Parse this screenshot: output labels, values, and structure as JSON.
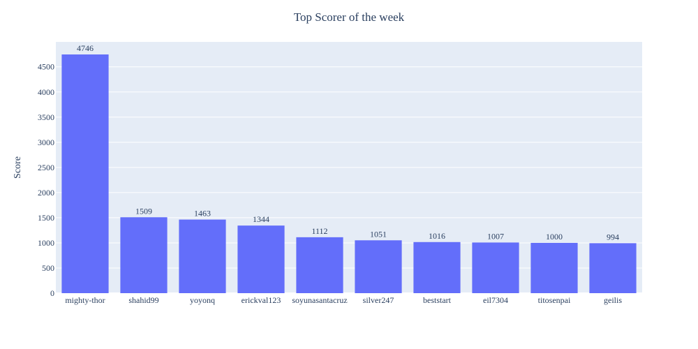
{
  "chart_data": {
    "type": "bar",
    "title": "Top Scorer of the week",
    "xlabel": "",
    "ylabel": "Score",
    "categories": [
      "mighty-thor",
      "shahid99",
      "yoyonq",
      "erickval123",
      "soyunasantacruz",
      "silver247",
      "beststart",
      "eil7304",
      "titosenpai",
      "geilis"
    ],
    "values": [
      4746,
      1509,
      1463,
      1344,
      1112,
      1051,
      1016,
      1007,
      1000,
      994
    ],
    "data_labels": [
      "4746",
      "1509",
      "1463",
      "1344",
      "1112",
      "1051",
      "1016",
      "1007",
      "1000",
      "994"
    ],
    "ylim": [
      0,
      4996
    ],
    "yticks": [
      0,
      500,
      1000,
      1500,
      2000,
      2500,
      3000,
      3500,
      4000,
      4500
    ],
    "ytick_labels": [
      "0",
      "500",
      "1000",
      "1500",
      "2000",
      "2500",
      "3000",
      "3500",
      "4000",
      "4500"
    ],
    "grid": true,
    "legend": "none",
    "colors": {
      "bar": "#636efa",
      "plot_background": "#e5ecf6",
      "grid": "#ffffff",
      "text": "#2a3f5f",
      "page_background": "#ffffff"
    }
  }
}
